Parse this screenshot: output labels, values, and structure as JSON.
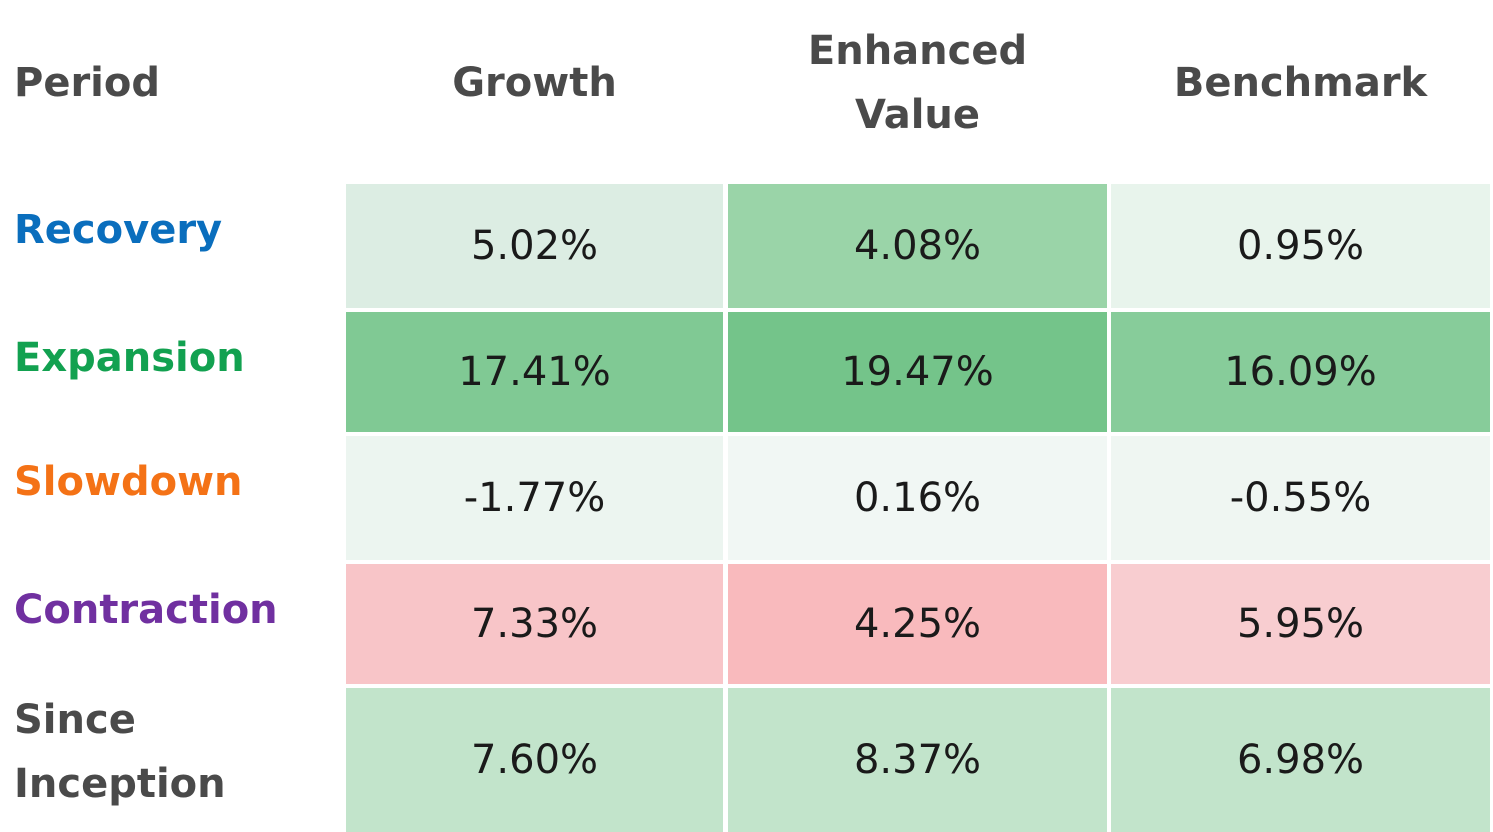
{
  "chart_data": {
    "type": "table",
    "columns": [
      "Period",
      "Growth",
      "Enhanced Value",
      "Benchmark"
    ],
    "rows": [
      {
        "period": "Recovery",
        "values": [
          "5.02%",
          "4.08%",
          "0.95%"
        ]
      },
      {
        "period": "Expansion",
        "values": [
          "17.41%",
          "19.47%",
          "16.09%"
        ]
      },
      {
        "period": "Slowdown",
        "values": [
          "-1.77%",
          "0.16%",
          "-0.55%"
        ]
      },
      {
        "period": "Contraction",
        "values": [
          "7.33%",
          "4.25%",
          "5.95%"
        ]
      },
      {
        "period": "Since Inception",
        "values": [
          "7.60%",
          "8.37%",
          "6.98%"
        ]
      }
    ],
    "row_label_colors": [
      "#0a6ebd",
      "#12a150",
      "#f47216",
      "#7030a0",
      "#4a4a4a"
    ],
    "cell_colors": [
      [
        "#dcede3",
        "#9ad4a8",
        "#e8f4ec"
      ],
      [
        "#80c994",
        "#74c48a",
        "#87cc9a"
      ],
      [
        "#ecf5f0",
        "#f1f7f4",
        "#eff6f2"
      ],
      [
        "#f8c5c8",
        "#f9babd",
        "#f8cdd0"
      ],
      [
        "#c2e4cb",
        "#c2e4cb",
        "#c2e4cb"
      ]
    ]
  }
}
